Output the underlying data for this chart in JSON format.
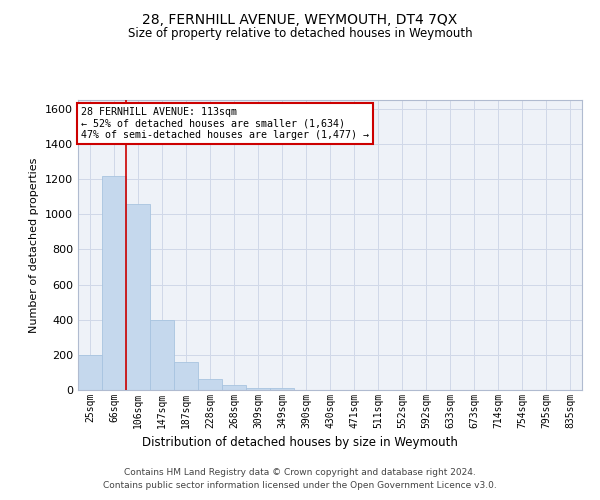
{
  "title": "28, FERNHILL AVENUE, WEYMOUTH, DT4 7QX",
  "subtitle": "Size of property relative to detached houses in Weymouth",
  "xlabel": "Distribution of detached houses by size in Weymouth",
  "ylabel": "Number of detached properties",
  "categories": [
    "25sqm",
    "66sqm",
    "106sqm",
    "147sqm",
    "187sqm",
    "228sqm",
    "268sqm",
    "309sqm",
    "349sqm",
    "390sqm",
    "430sqm",
    "471sqm",
    "511sqm",
    "552sqm",
    "592sqm",
    "633sqm",
    "673sqm",
    "714sqm",
    "754sqm",
    "795sqm",
    "835sqm"
  ],
  "values": [
    200,
    1220,
    1060,
    400,
    160,
    60,
    30,
    10,
    10,
    0,
    0,
    0,
    0,
    0,
    0,
    0,
    0,
    0,
    0,
    0,
    0
  ],
  "bar_color": "#c5d8ed",
  "bar_edge_color": "#a8c4e0",
  "highlight_bar_index": 2,
  "highlight_color": "#cc0000",
  "ylim": [
    0,
    1650
  ],
  "yticks": [
    0,
    200,
    400,
    600,
    800,
    1000,
    1200,
    1400,
    1600
  ],
  "annotation_title": "28 FERNHILL AVENUE: 113sqm",
  "annotation_line1": "← 52% of detached houses are smaller (1,634)",
  "annotation_line2": "47% of semi-detached houses are larger (1,477) →",
  "annotation_box_color": "#ffffff",
  "annotation_box_edge": "#cc0000",
  "footer_line1": "Contains HM Land Registry data © Crown copyright and database right 2024.",
  "footer_line2": "Contains public sector information licensed under the Open Government Licence v3.0.",
  "grid_color": "#d0d8e8",
  "background_color": "#eef2f8"
}
